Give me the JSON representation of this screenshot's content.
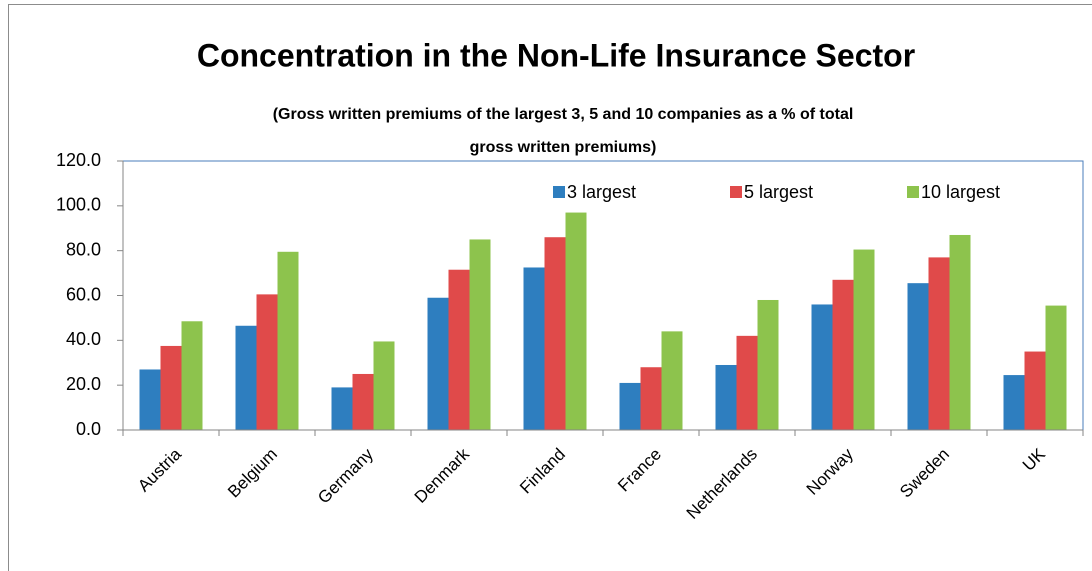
{
  "chart_data": {
    "type": "bar",
    "title": "Concentration in the Non-Life Insurance Sector",
    "subtitle": [
      "(Gross written premiums of the largest 3, 5 and 10 companies as a % of total",
      "gross written premiums)"
    ],
    "categories": [
      "Austria",
      "Belgium",
      "Germany",
      "Denmark",
      "Finland",
      "France",
      "Netherlands",
      "Norway",
      "Sweden",
      "UK"
    ],
    "series": [
      {
        "name": "3 largest",
        "color": "#2e7ebf",
        "values": [
          27,
          46.5,
          19,
          59,
          72.5,
          21,
          29,
          56,
          65.5,
          24.5
        ]
      },
      {
        "name": "5 largest",
        "color": "#e04a4a",
        "values": [
          37.5,
          60.5,
          25,
          71.5,
          86,
          28,
          42,
          67,
          77,
          35
        ]
      },
      {
        "name": "10 largest",
        "color": "#8dc34d",
        "values": [
          48.5,
          79.5,
          39.5,
          85,
          97,
          44,
          58,
          80.5,
          87,
          55.5
        ]
      }
    ],
    "ylim": [
      0,
      120
    ],
    "yticks": [
      {
        "value": 0,
        "label": "0.0"
      },
      {
        "value": 20,
        "label": "20.0"
      },
      {
        "value": 40,
        "label": "40.0"
      },
      {
        "value": 60,
        "label": "60.0"
      },
      {
        "value": 80,
        "label": "80.0"
      },
      {
        "value": 100,
        "label": "100.0"
      },
      {
        "value": 120,
        "label": "120.0"
      }
    ],
    "legend": "top"
  }
}
